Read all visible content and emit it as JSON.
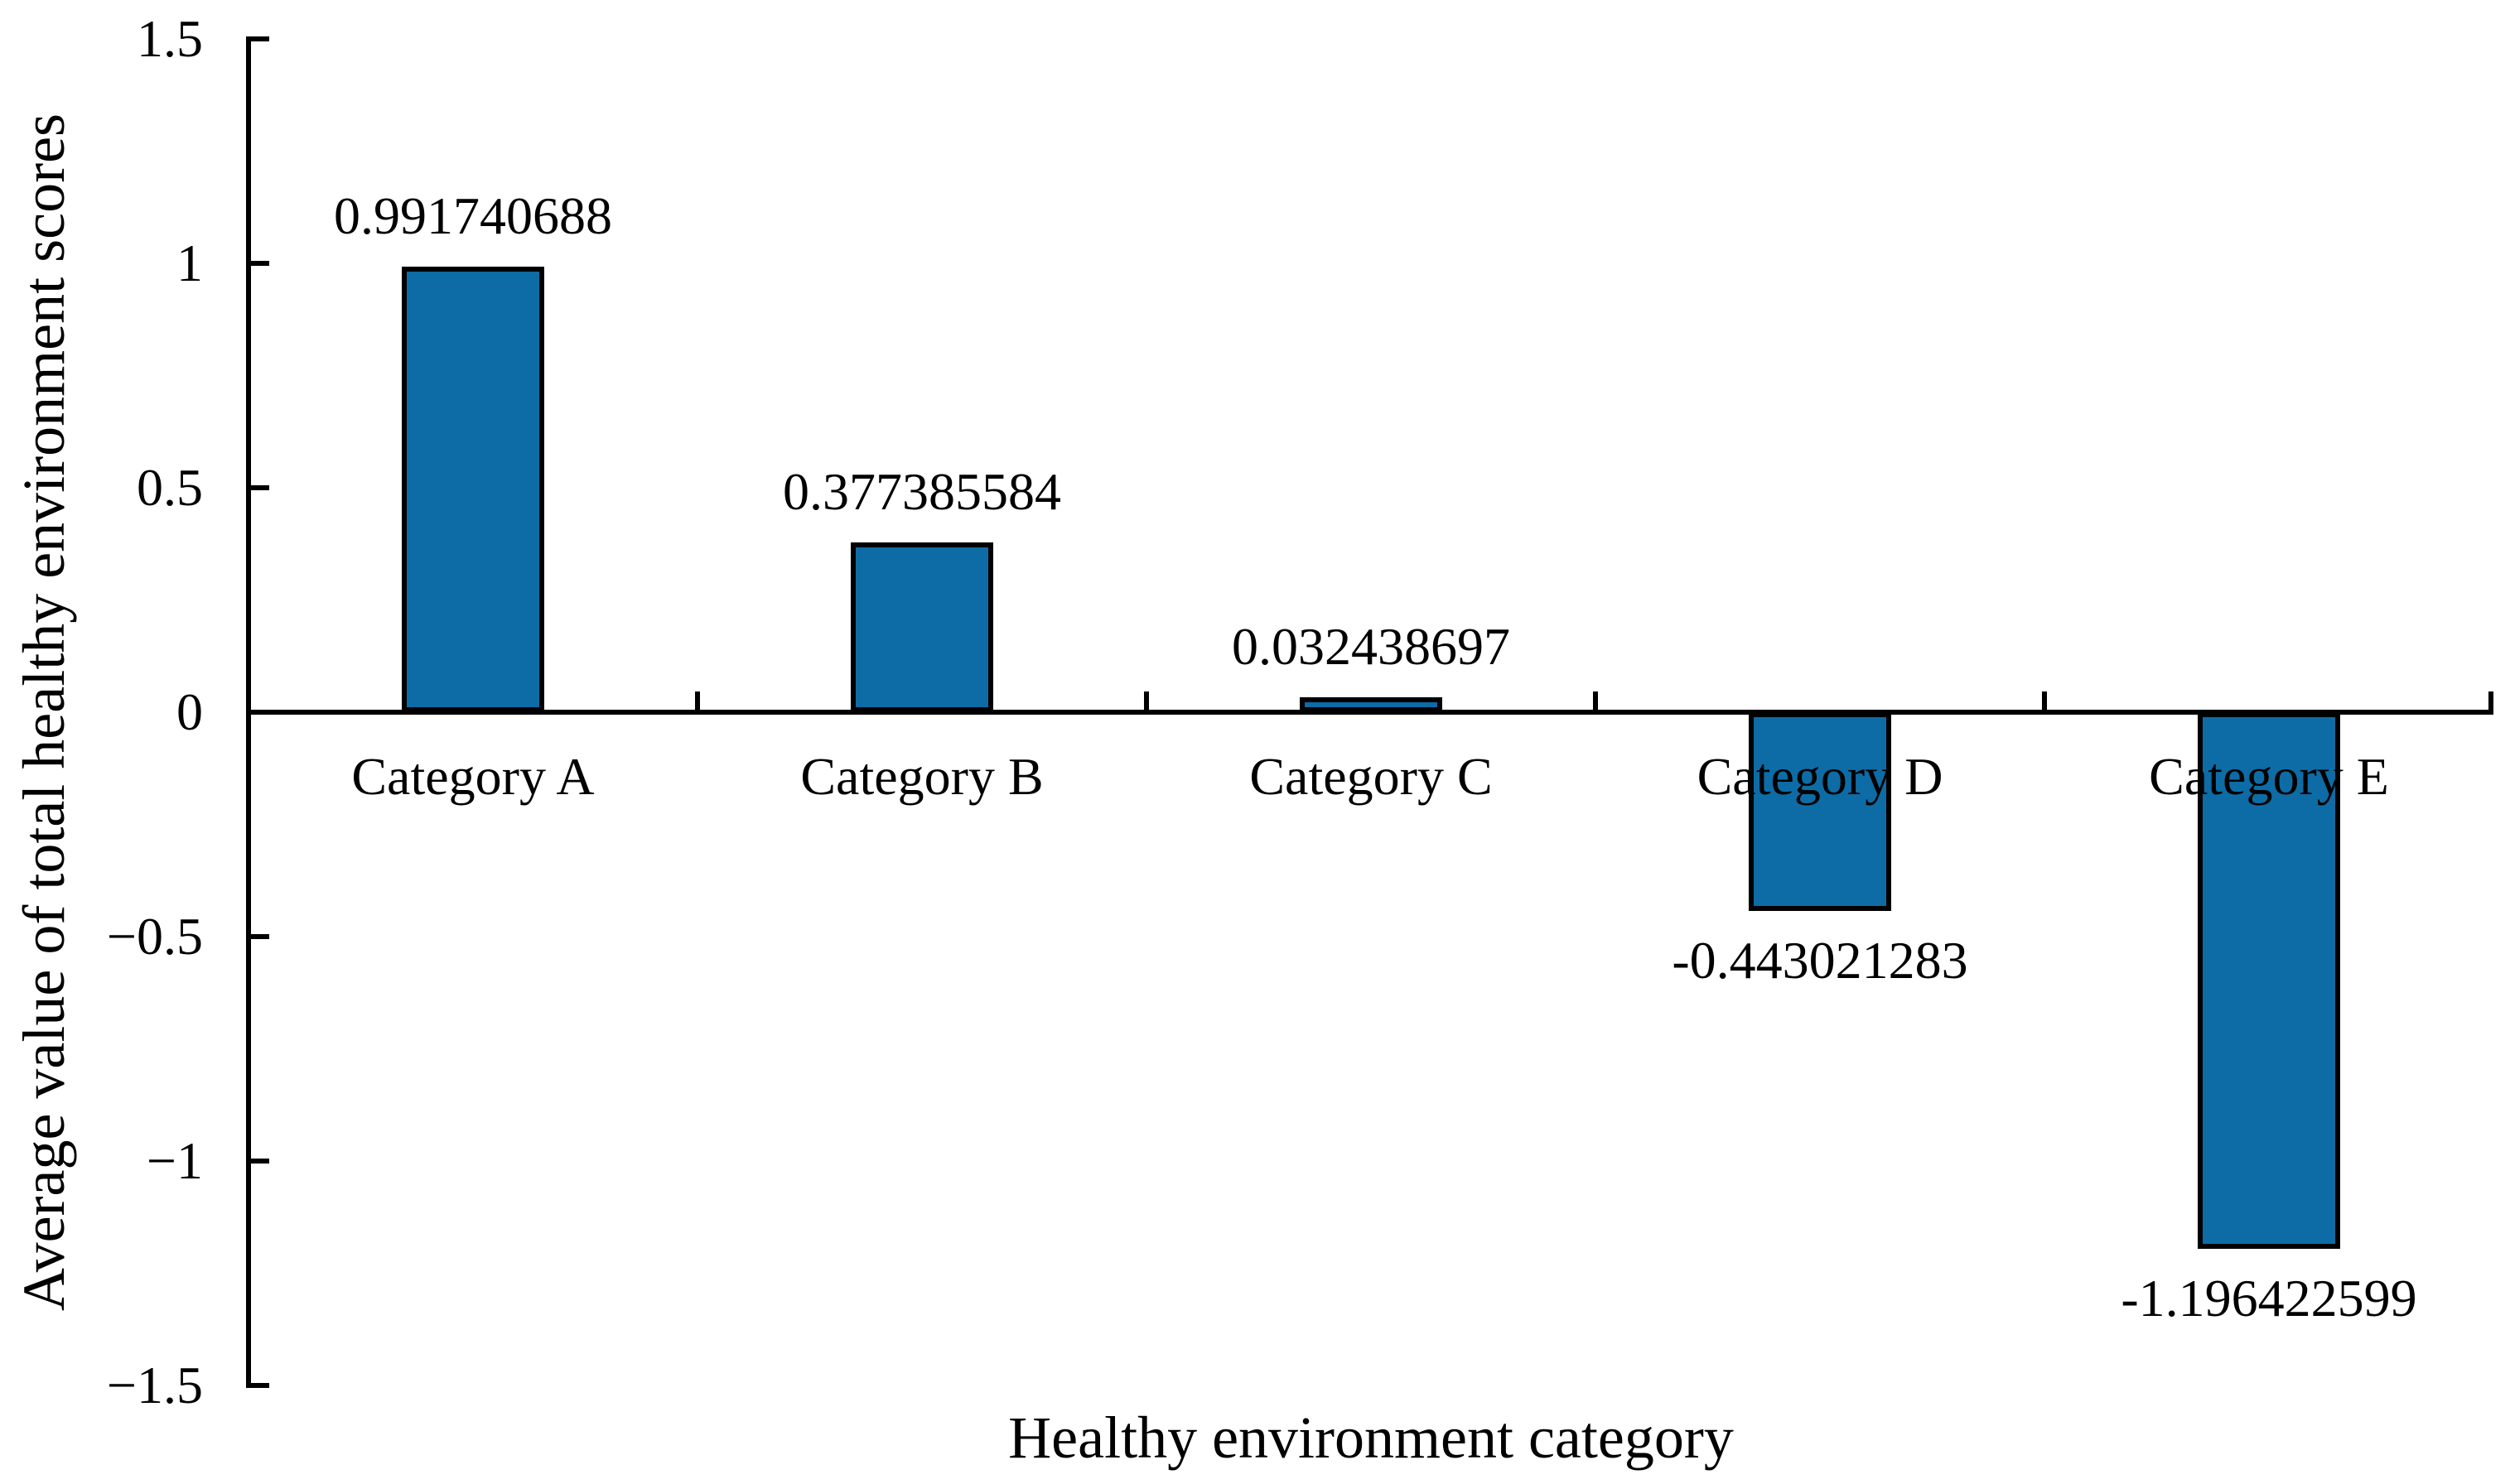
{
  "figure": {
    "background_color": "#ffffff",
    "axis_color": "#000000",
    "text_color": "#000000"
  },
  "chart_data": {
    "type": "bar",
    "title": "",
    "xlabel": "Healthy environment category",
    "ylabel": "Average value of total healthy environment scores",
    "categories": [
      "Category A",
      "Category B",
      "Category C",
      "Category D",
      "Category E"
    ],
    "values": [
      0.991740688,
      0.377385584,
      0.032438697,
      -0.443021283,
      -1.196422599
    ],
    "data_labels": [
      "0.991740688",
      "0.377385584",
      "0.032438697",
      "-0.443021283",
      "-1.196422599"
    ],
    "y_ticks": [
      {
        "value": 1.5,
        "label": "1.5"
      },
      {
        "value": 1.0,
        "label": "1"
      },
      {
        "value": 0.5,
        "label": "0.5"
      },
      {
        "value": 0.0,
        "label": "0"
      },
      {
        "value": -0.5,
        "label": "−0.5"
      },
      {
        "value": -1.0,
        "label": "−1"
      },
      {
        "value": -1.5,
        "label": "−1.5"
      }
    ],
    "ylim": [
      -1.5,
      1.5
    ],
    "bar_color": "#0D6CA5",
    "bar_border_color": "#000000",
    "grid": false,
    "legend": false
  }
}
